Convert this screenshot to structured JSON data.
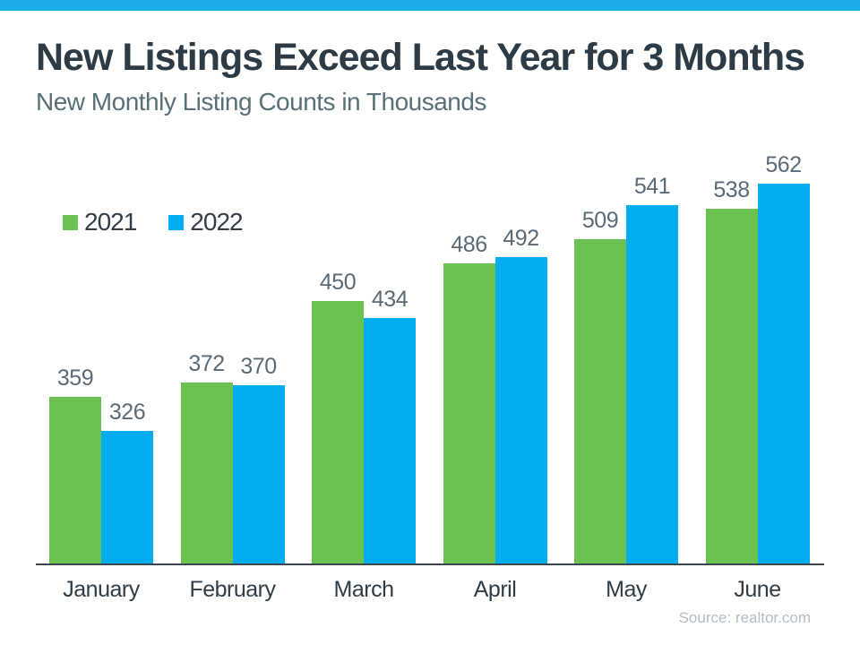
{
  "page": {
    "title": "New Listings Exceed Last Year for 3 Months",
    "subtitle": "New Monthly Listing Counts in Thousands",
    "source": "Source: realtor.com"
  },
  "colors": {
    "accent_strip": "#1babe9",
    "series_2021": "#6cc250",
    "series_2022": "#00aeef",
    "title_text": "#2d3b46",
    "subtitle_text": "#587077",
    "value_label_text": "#5a6a76",
    "month_label_text": "#2f3d48",
    "axis_line": "#3c464f",
    "source_text": "#b2bec6"
  },
  "chart_data": {
    "type": "bar",
    "title": "New Listings Exceed Last Year for 3 Months",
    "subtitle": "New Monthly Listing Counts in Thousands",
    "categories": [
      "January",
      "February",
      "March",
      "April",
      "May",
      "June"
    ],
    "series": [
      {
        "name": "2021",
        "color": "#6cc250",
        "values": [
          359,
          372,
          450,
          486,
          509,
          538
        ]
      },
      {
        "name": "2022",
        "color": "#00aeef",
        "values": [
          326,
          370,
          434,
          492,
          541,
          562
        ]
      }
    ],
    "value_labels_shown": true,
    "legend_position": "top-left",
    "legend_entries": [
      "2021",
      "2022"
    ],
    "grid": false,
    "xlabel": "",
    "ylabel": "",
    "ylim": [
      200,
      565
    ],
    "source": "Source: realtor.com"
  }
}
